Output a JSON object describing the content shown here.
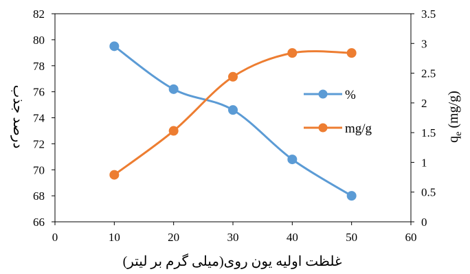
{
  "chart_data": {
    "type": "line",
    "x": [
      10,
      20,
      30,
      40,
      50
    ],
    "xlim": [
      0,
      60
    ],
    "x_ticks": [
      "0",
      "10",
      "20",
      "30",
      "40",
      "50",
      "60"
    ],
    "xlabel": "غلظت اولیه یون روی(میلی گرم بر لیتر)",
    "ylabel_left": "درصد جذب",
    "ylim_left": [
      66,
      82
    ],
    "y_ticks_left": [
      "66",
      "68",
      "70",
      "72",
      "74",
      "76",
      "78",
      "80",
      "82"
    ],
    "ylabel_right": "qe (mg/g)",
    "ylabel_right_parts": {
      "base": "q",
      "sub": "e",
      "rest": " (mg/g)"
    },
    "ylim_right": [
      0,
      3.5
    ],
    "y_ticks_right": [
      "0",
      "0.5",
      "1",
      "1.5",
      "2",
      "2.5",
      "3",
      "3.5"
    ],
    "legend_position": "right-center",
    "grid": false,
    "smooth": true,
    "series": [
      {
        "name": "%",
        "axis": "left",
        "values": [
          79.5,
          76.2,
          74.6,
          70.8,
          68.0
        ],
        "color": "#5B9BD5"
      },
      {
        "name": "mg/g",
        "axis": "right",
        "values": [
          0.79,
          1.53,
          2.44,
          2.84,
          2.84
        ],
        "color": "#ED7D31"
      }
    ]
  }
}
